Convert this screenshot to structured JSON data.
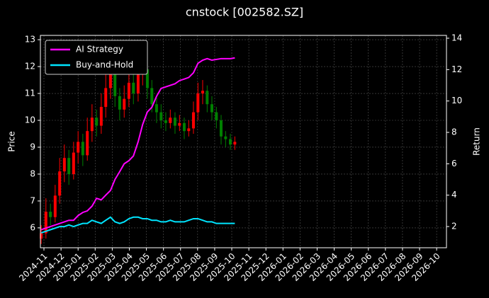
{
  "chart_data": {
    "type": "candlestick",
    "title": "cnstock [002582.SZ]",
    "ylabel": "Price",
    "y2label": "Return",
    "x": [
      2024.82,
      2024.843,
      2024.865,
      2024.888,
      2024.91,
      2024.933,
      2024.955,
      2024.978,
      2025.0,
      2025.023,
      2025.045,
      2025.068,
      2025.09,
      2025.113,
      2025.135,
      2025.158,
      2025.18,
      2025.203,
      2025.225,
      2025.248,
      2025.27,
      2025.293,
      2025.315,
      2025.338,
      2025.36,
      2025.383,
      2025.405,
      2025.428,
      2025.45,
      2025.473,
      2025.495,
      2025.518,
      2025.54,
      2025.563,
      2025.585,
      2025.608,
      2025.63,
      2025.653,
      2025.675,
      2025.698,
      2025.72,
      2025.743,
      2025.765
    ],
    "open": [
      5.6,
      5.8,
      6.6,
      6.4,
      7.2,
      8.1,
      8.6,
      8.0,
      8.8,
      9.2,
      8.7,
      9.6,
      10.1,
      9.8,
      10.5,
      11.2,
      11.8,
      10.9,
      10.4,
      10.8,
      11.4,
      11.0,
      11.7,
      11.9,
      11.2,
      10.6,
      10.3,
      10.0,
      9.9,
      10.1,
      9.8,
      9.9,
      9.6,
      9.7,
      10.3,
      11.0,
      11.1,
      10.6,
      10.3,
      10.0,
      9.4,
      9.3,
      9.1
    ],
    "high": [
      6.1,
      7.1,
      6.9,
      7.6,
      8.6,
      9.1,
      8.9,
      9.2,
      9.6,
      9.5,
      10.1,
      10.6,
      10.4,
      11.0,
      11.7,
      12.3,
      12.0,
      11.2,
      11.3,
      11.9,
      11.7,
      12.2,
      12.3,
      12.1,
      11.5,
      10.9,
      10.6,
      10.3,
      10.4,
      10.3,
      10.2,
      10.1,
      10.0,
      10.7,
      11.4,
      11.5,
      11.3,
      10.9,
      10.5,
      10.2,
      9.6,
      9.5,
      9.4
    ],
    "low": [
      5.4,
      5.6,
      6.1,
      6.2,
      6.9,
      7.7,
      7.6,
      7.8,
      8.4,
      8.3,
      8.5,
      9.2,
      9.4,
      9.5,
      10.1,
      10.8,
      10.5,
      10.0,
      10.1,
      10.5,
      10.6,
      10.7,
      11.3,
      10.8,
      10.3,
      9.9,
      9.7,
      9.6,
      9.7,
      9.5,
      9.6,
      9.3,
      9.4,
      9.5,
      10.0,
      10.6,
      10.3,
      10.0,
      9.7,
      9.1,
      9.0,
      8.9,
      8.9
    ],
    "close": [
      5.8,
      6.6,
      6.4,
      7.2,
      8.1,
      8.6,
      8.0,
      8.8,
      9.2,
      8.7,
      9.6,
      10.1,
      9.8,
      10.5,
      11.2,
      11.8,
      10.9,
      10.4,
      10.8,
      11.4,
      11.0,
      11.7,
      11.9,
      11.2,
      10.6,
      10.3,
      10.0,
      9.9,
      10.1,
      9.8,
      9.9,
      9.6,
      9.7,
      10.3,
      11.0,
      11.1,
      10.6,
      10.3,
      10.0,
      9.4,
      9.3,
      9.1,
      9.2
    ],
    "up_color": "#ff0000",
    "down_color": "#008000",
    "series": [
      {
        "name": "AI Strategy",
        "color": "#ff00ff",
        "axis": "y2",
        "values": [
          1.8,
          1.9,
          2.0,
          2.1,
          2.2,
          2.3,
          2.4,
          2.4,
          2.7,
          2.9,
          3.0,
          3.3,
          3.8,
          3.7,
          4.0,
          4.3,
          5.0,
          5.5,
          6.0,
          6.2,
          6.5,
          7.4,
          8.5,
          9.3,
          9.6,
          10.3,
          10.8,
          10.9,
          11.0,
          11.1,
          11.3,
          11.4,
          11.5,
          11.8,
          12.4,
          12.6,
          12.7,
          12.6,
          12.65,
          12.7,
          12.7,
          12.7,
          12.75
        ]
      },
      {
        "name": "Buy-and-Hold",
        "color": "#00e5ff",
        "axis": "y2",
        "values": [
          1.6,
          1.7,
          1.8,
          1.9,
          2.0,
          2.0,
          2.1,
          2.0,
          2.1,
          2.2,
          2.2,
          2.4,
          2.3,
          2.2,
          2.4,
          2.6,
          2.3,
          2.2,
          2.3,
          2.5,
          2.6,
          2.6,
          2.5,
          2.5,
          2.4,
          2.4,
          2.3,
          2.3,
          2.4,
          2.3,
          2.3,
          2.3,
          2.4,
          2.5,
          2.5,
          2.4,
          2.3,
          2.3,
          2.2,
          2.2,
          2.2,
          2.2,
          2.2
        ]
      }
    ],
    "xlim": [
      2024.816,
      2026.798
    ],
    "xticks": [
      {
        "value": 2024.8333,
        "label": "2024-11"
      },
      {
        "value": 2024.9167,
        "label": "2024-12"
      },
      {
        "value": 2025.0,
        "label": "2025-01"
      },
      {
        "value": 2025.0833,
        "label": "2025-02"
      },
      {
        "value": 2025.1667,
        "label": "2025-03"
      },
      {
        "value": 2025.25,
        "label": "2025-04"
      },
      {
        "value": 2025.3333,
        "label": "2025-05"
      },
      {
        "value": 2025.4167,
        "label": "2025-06"
      },
      {
        "value": 2025.5,
        "label": "2025-07"
      },
      {
        "value": 2025.5833,
        "label": "2025-08"
      },
      {
        "value": 2025.6667,
        "label": "2025-09"
      },
      {
        "value": 2025.75,
        "label": "2025-10"
      },
      {
        "value": 2025.8333,
        "label": "2025-11"
      },
      {
        "value": 2025.9167,
        "label": "2025-12"
      },
      {
        "value": 2026.0,
        "label": "2026-01"
      },
      {
        "value": 2026.0833,
        "label": "2026-02"
      },
      {
        "value": 2026.1667,
        "label": "2026-03"
      },
      {
        "value": 2026.25,
        "label": "2026-04"
      },
      {
        "value": 2026.3333,
        "label": "2026-05"
      },
      {
        "value": 2026.4167,
        "label": "2026-06"
      },
      {
        "value": 2026.5,
        "label": "2026-07"
      },
      {
        "value": 2026.5833,
        "label": "2026-08"
      },
      {
        "value": 2026.6667,
        "label": "2026-09"
      },
      {
        "value": 2026.75,
        "label": "2026-10"
      }
    ],
    "ylim": [
      5.26,
      13.16
    ],
    "yticks": [
      6,
      7,
      8,
      9,
      10,
      11,
      12,
      13
    ],
    "y2lim": [
      0.65,
      14.18
    ],
    "y2ticks": [
      2,
      4,
      6,
      8,
      10,
      12,
      14
    ],
    "grid": true,
    "legend": "upper left"
  }
}
